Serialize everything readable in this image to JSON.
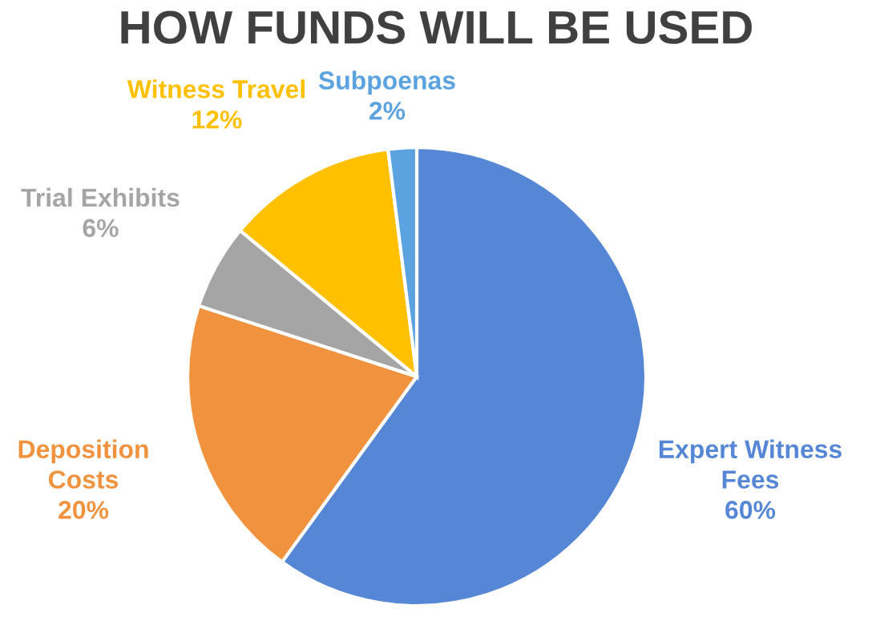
{
  "chart_data": {
    "type": "pie",
    "title": "HOW FUNDS WILL BE USED",
    "categories": [
      "Expert Witness Fees",
      "Deposition Costs",
      "Trial Exhibits",
      "Witness Travel",
      "Subpoenas"
    ],
    "values": [
      60,
      20,
      6,
      12,
      2
    ],
    "value_labels": [
      "60%",
      "20%",
      "6%",
      "12%",
      "2%"
    ],
    "colors": [
      "#5587d6",
      "#f0923e",
      "#a5a5a5",
      "#ffc000",
      "#5ba3e0"
    ]
  }
}
